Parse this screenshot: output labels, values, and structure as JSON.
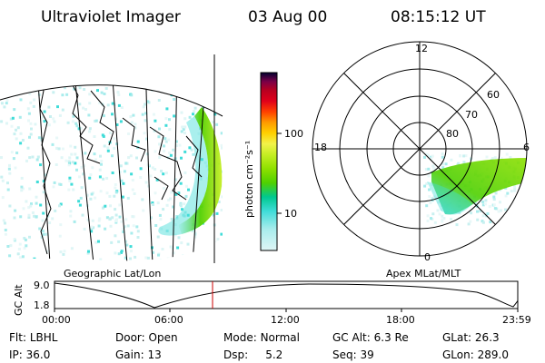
{
  "header": {
    "title": "Ultraviolet Imager",
    "date": "03 Aug 00",
    "time": "08:15:12 UT"
  },
  "geo_panel": {
    "label": "Geographic Lat/Lon"
  },
  "polar_panel": {
    "label": "Apex MLat/MLT",
    "mlt_labels": {
      "top": "12",
      "left": "18",
      "right": "6",
      "bottom": "0"
    },
    "lat_labels": [
      "60",
      "70",
      "80"
    ]
  },
  "colorbar": {
    "unit_label": "photon cm⁻²s⁻¹",
    "ticks": [
      "100",
      "10"
    ],
    "colors": [
      "#000030",
      "#3a004f",
      "#7a0048",
      "#b80020",
      "#e0001a",
      "#ff4000",
      "#ff9a00",
      "#ffd000",
      "#f2f24a",
      "#c6ee24",
      "#8fe000",
      "#4fd000",
      "#00c890",
      "#40dcd8",
      "#a8ecec",
      "#dff6f6"
    ]
  },
  "timeline": {
    "ylabel": "GC Alt",
    "y_ticks": [
      "9.0",
      "1.8"
    ],
    "x_ticks": [
      "00:00",
      "06:00",
      "12:00",
      "18:00",
      "23:59"
    ],
    "current_time_color": "#cc0000"
  },
  "info": {
    "row1": [
      {
        "label": "Flt:",
        "value": "LBHL"
      },
      {
        "label": "Door:",
        "value": "Open"
      },
      {
        "label": "Mode:",
        "value": "Normal"
      },
      {
        "label": "GC Alt:",
        "value": "6.3 Re"
      },
      {
        "label": "GLat:",
        "value": "26.3"
      }
    ],
    "row2": [
      {
        "label": "IP:",
        "value": "36.0"
      },
      {
        "label": "Gain:",
        "value": "13"
      },
      {
        "label": "Dsp:",
        "value": "5.2"
      },
      {
        "label": "Seq:",
        "value": "39"
      },
      {
        "label": "GLon:",
        "value": "289.0"
      }
    ]
  }
}
